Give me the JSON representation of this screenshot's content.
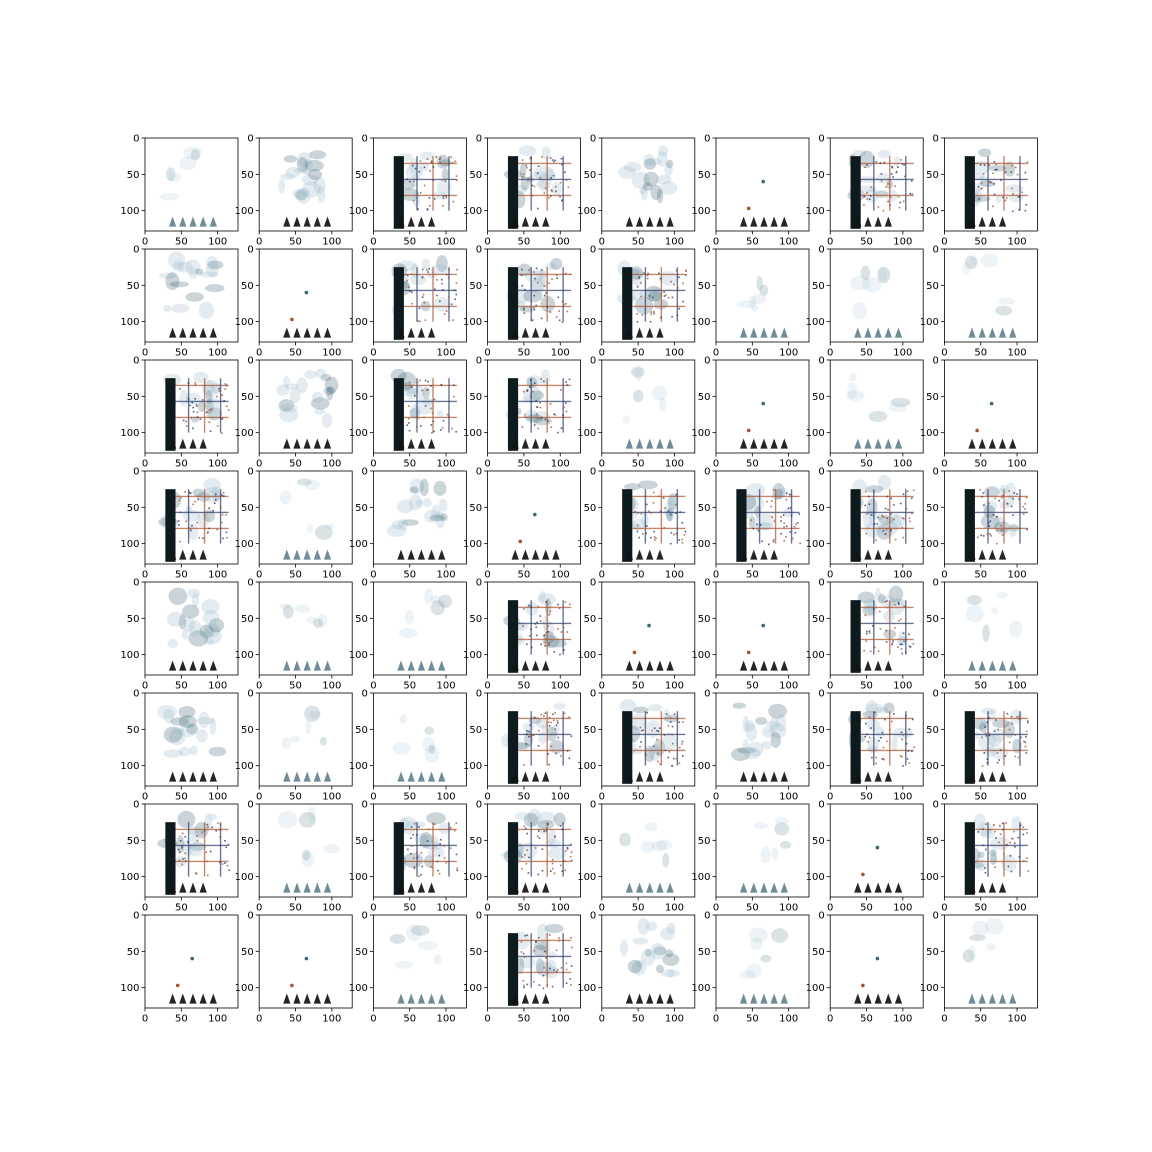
{
  "figure": {
    "background": "#ffffff"
  },
  "chart_data": {
    "type": "image_grid",
    "rows": 8,
    "cols": 8,
    "title": "",
    "xlabel": "",
    "ylabel": "",
    "image_extent": [
      0,
      128,
      128,
      0
    ],
    "xlim": [
      0,
      128
    ],
    "ylim": [
      128,
      0
    ],
    "x_ticks": [
      0,
      50,
      100
    ],
    "y_ticks": [
      0,
      50,
      100
    ],
    "x_tick_labels": [
      "0",
      "50",
      "100"
    ],
    "y_tick_labels": [
      "0",
      "50",
      "100"
    ],
    "grid": false,
    "colors": {
      "frame": "#000000",
      "dark": "#0d1a1e",
      "ink": "#121212",
      "haze": "#9dbccc",
      "haze_dark": "#3f6676",
      "brick": "#a9532c",
      "navy": "#2b3a67"
    },
    "panel_patterns": [
      [
        "weak",
        "cloud",
        "grid",
        "grid",
        "cloud",
        "sparse",
        "grid",
        "grid"
      ],
      [
        "cloud",
        "sparse",
        "grid",
        "grid",
        "grid",
        "weak",
        "weak",
        "weak"
      ],
      [
        "grid",
        "cloud",
        "grid",
        "grid",
        "weak",
        "sparse",
        "weak",
        "sparse"
      ],
      [
        "grid",
        "weak",
        "cloud",
        "sparse",
        "grid",
        "grid",
        "grid",
        "grid"
      ],
      [
        "cloud",
        "weak",
        "weak",
        "grid",
        "sparse",
        "sparse",
        "grid",
        "weak"
      ],
      [
        "cloud",
        "weak",
        "weak",
        "grid",
        "grid",
        "cloud",
        "grid",
        "grid"
      ],
      [
        "grid",
        "weak",
        "grid",
        "grid",
        "weak",
        "weak",
        "sparse",
        "grid"
      ],
      [
        "sparse",
        "sparse",
        "weak",
        "grid",
        "cloud",
        "weak",
        "sparse",
        "weak"
      ]
    ]
  }
}
